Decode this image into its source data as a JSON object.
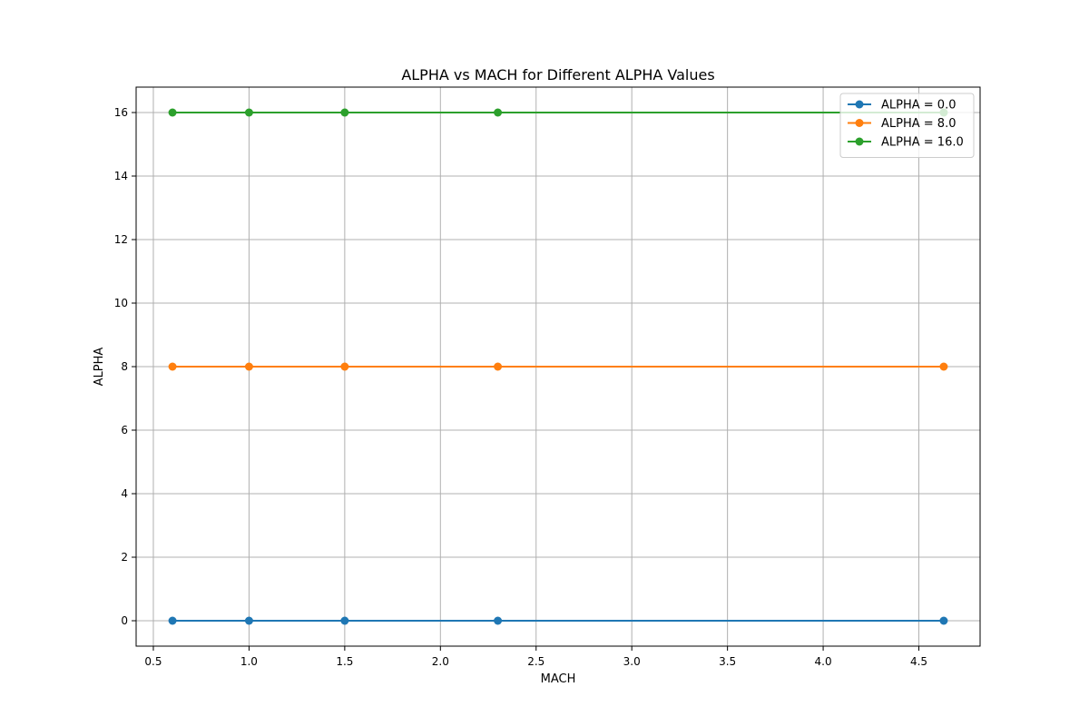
{
  "chart_data": {
    "type": "line",
    "title": "ALPHA vs MACH for Different ALPHA Values",
    "xlabel": "MACH",
    "ylabel": "ALPHA",
    "x": [
      0.6,
      1.0,
      1.5,
      2.3,
      4.63
    ],
    "xlim": [
      0.41,
      4.82
    ],
    "ylim": [
      -0.8,
      16.8
    ],
    "xticks": [
      0.5,
      1.0,
      1.5,
      2.0,
      2.5,
      3.0,
      3.5,
      4.0,
      4.5
    ],
    "xtick_labels": [
      "0.5",
      "1.0",
      "1.5",
      "2.0",
      "2.5",
      "3.0",
      "3.5",
      "4.0",
      "4.5"
    ],
    "yticks": [
      0,
      2,
      4,
      6,
      8,
      10,
      12,
      14,
      16
    ],
    "ytick_labels": [
      "0",
      "2",
      "4",
      "6",
      "8",
      "10",
      "12",
      "14",
      "16"
    ],
    "grid": true,
    "legend_position": "top-right",
    "series": [
      {
        "name": "ALPHA = 0.0",
        "color": "#1f77b4",
        "values": [
          0,
          0,
          0,
          0,
          0
        ]
      },
      {
        "name": "ALPHA = 8.0",
        "color": "#ff7f0e",
        "values": [
          8,
          8,
          8,
          8,
          8
        ]
      },
      {
        "name": "ALPHA = 16.0",
        "color": "#2ca02c",
        "values": [
          16,
          16,
          16,
          16,
          16
        ]
      }
    ]
  }
}
